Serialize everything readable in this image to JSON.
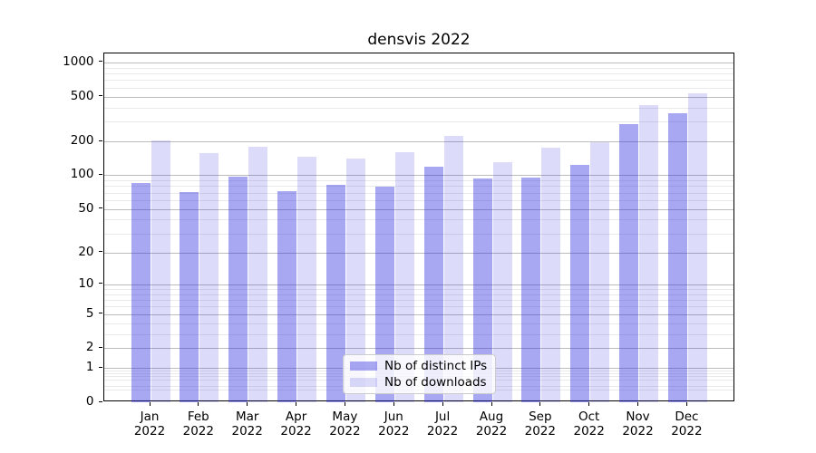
{
  "figure": {
    "background": "#ffffff"
  },
  "chart_data": {
    "type": "bar",
    "title": "densvis 2022",
    "categories": [
      "Jan",
      "Feb",
      "Mar",
      "Apr",
      "May",
      "Jun",
      "Jul",
      "Aug",
      "Sep",
      "Oct",
      "Nov",
      "Dec"
    ],
    "year": "2022",
    "series": [
      {
        "name": "Nb of distinct IPs",
        "color": "rgba(38,38,223,0.40)",
        "values": [
          85,
          71,
          98,
          72,
          82,
          79,
          119,
          93,
          96,
          124,
          287,
          356
        ]
      },
      {
        "name": "Nb of downloads",
        "color": "rgba(38,38,223,0.16)",
        "values": [
          203,
          157,
          180,
          145,
          140,
          161,
          222,
          132,
          176,
          196,
          420,
          535
        ]
      }
    ],
    "xlabel": "",
    "ylabel": "",
    "yscale": {
      "type": "log1p",
      "ylim": [
        0,
        1200
      ],
      "major_ticks": [
        0,
        1,
        2,
        5,
        10,
        20,
        50,
        100,
        200,
        500,
        1000
      ],
      "minor_gridlines": [
        0.3,
        0.4,
        0.6,
        0.7,
        0.8,
        0.9,
        3,
        4,
        6,
        7,
        8,
        9,
        30,
        40,
        60,
        70,
        80,
        90,
        300,
        400,
        600,
        700,
        800,
        900
      ]
    },
    "grid": {
      "major_color": "#bcbcbc",
      "minor_color": "#e9e9e9",
      "visible": true
    },
    "legend": {
      "position": "lower center"
    }
  }
}
